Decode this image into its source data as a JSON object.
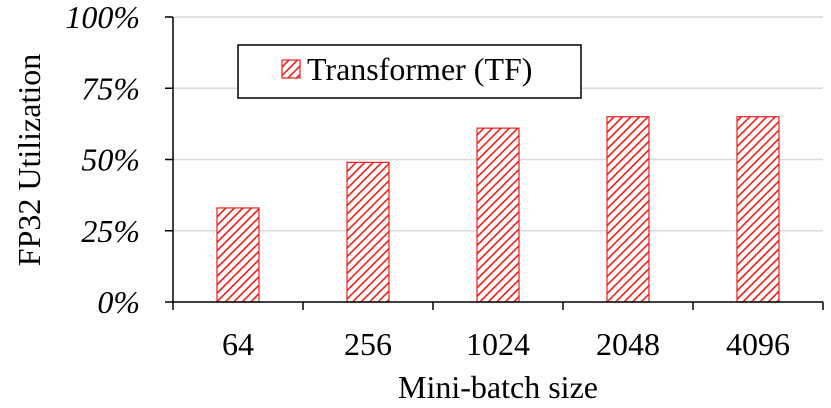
{
  "chart_data": {
    "type": "bar",
    "categories": [
      "64",
      "256",
      "1024",
      "2048",
      "4096"
    ],
    "series": [
      {
        "name": "Transformer (TF)",
        "values": [
          0.33,
          0.49,
          0.61,
          0.65,
          0.65
        ]
      }
    ],
    "xlabel": "Mini-batch size",
    "ylabel": "FP32 Utilization",
    "ylim": [
      0,
      1
    ],
    "yticks": [
      "0%",
      "25%",
      "50%",
      "75%",
      "100%"
    ],
    "grid": true,
    "legend_position": "top-left",
    "colors": {
      "bar_stroke": "#e8201a",
      "bar_hatch": "#e8201a",
      "bar_fill": "#ffffff",
      "grid": "#d9d9d9",
      "axis": "#000000"
    }
  }
}
